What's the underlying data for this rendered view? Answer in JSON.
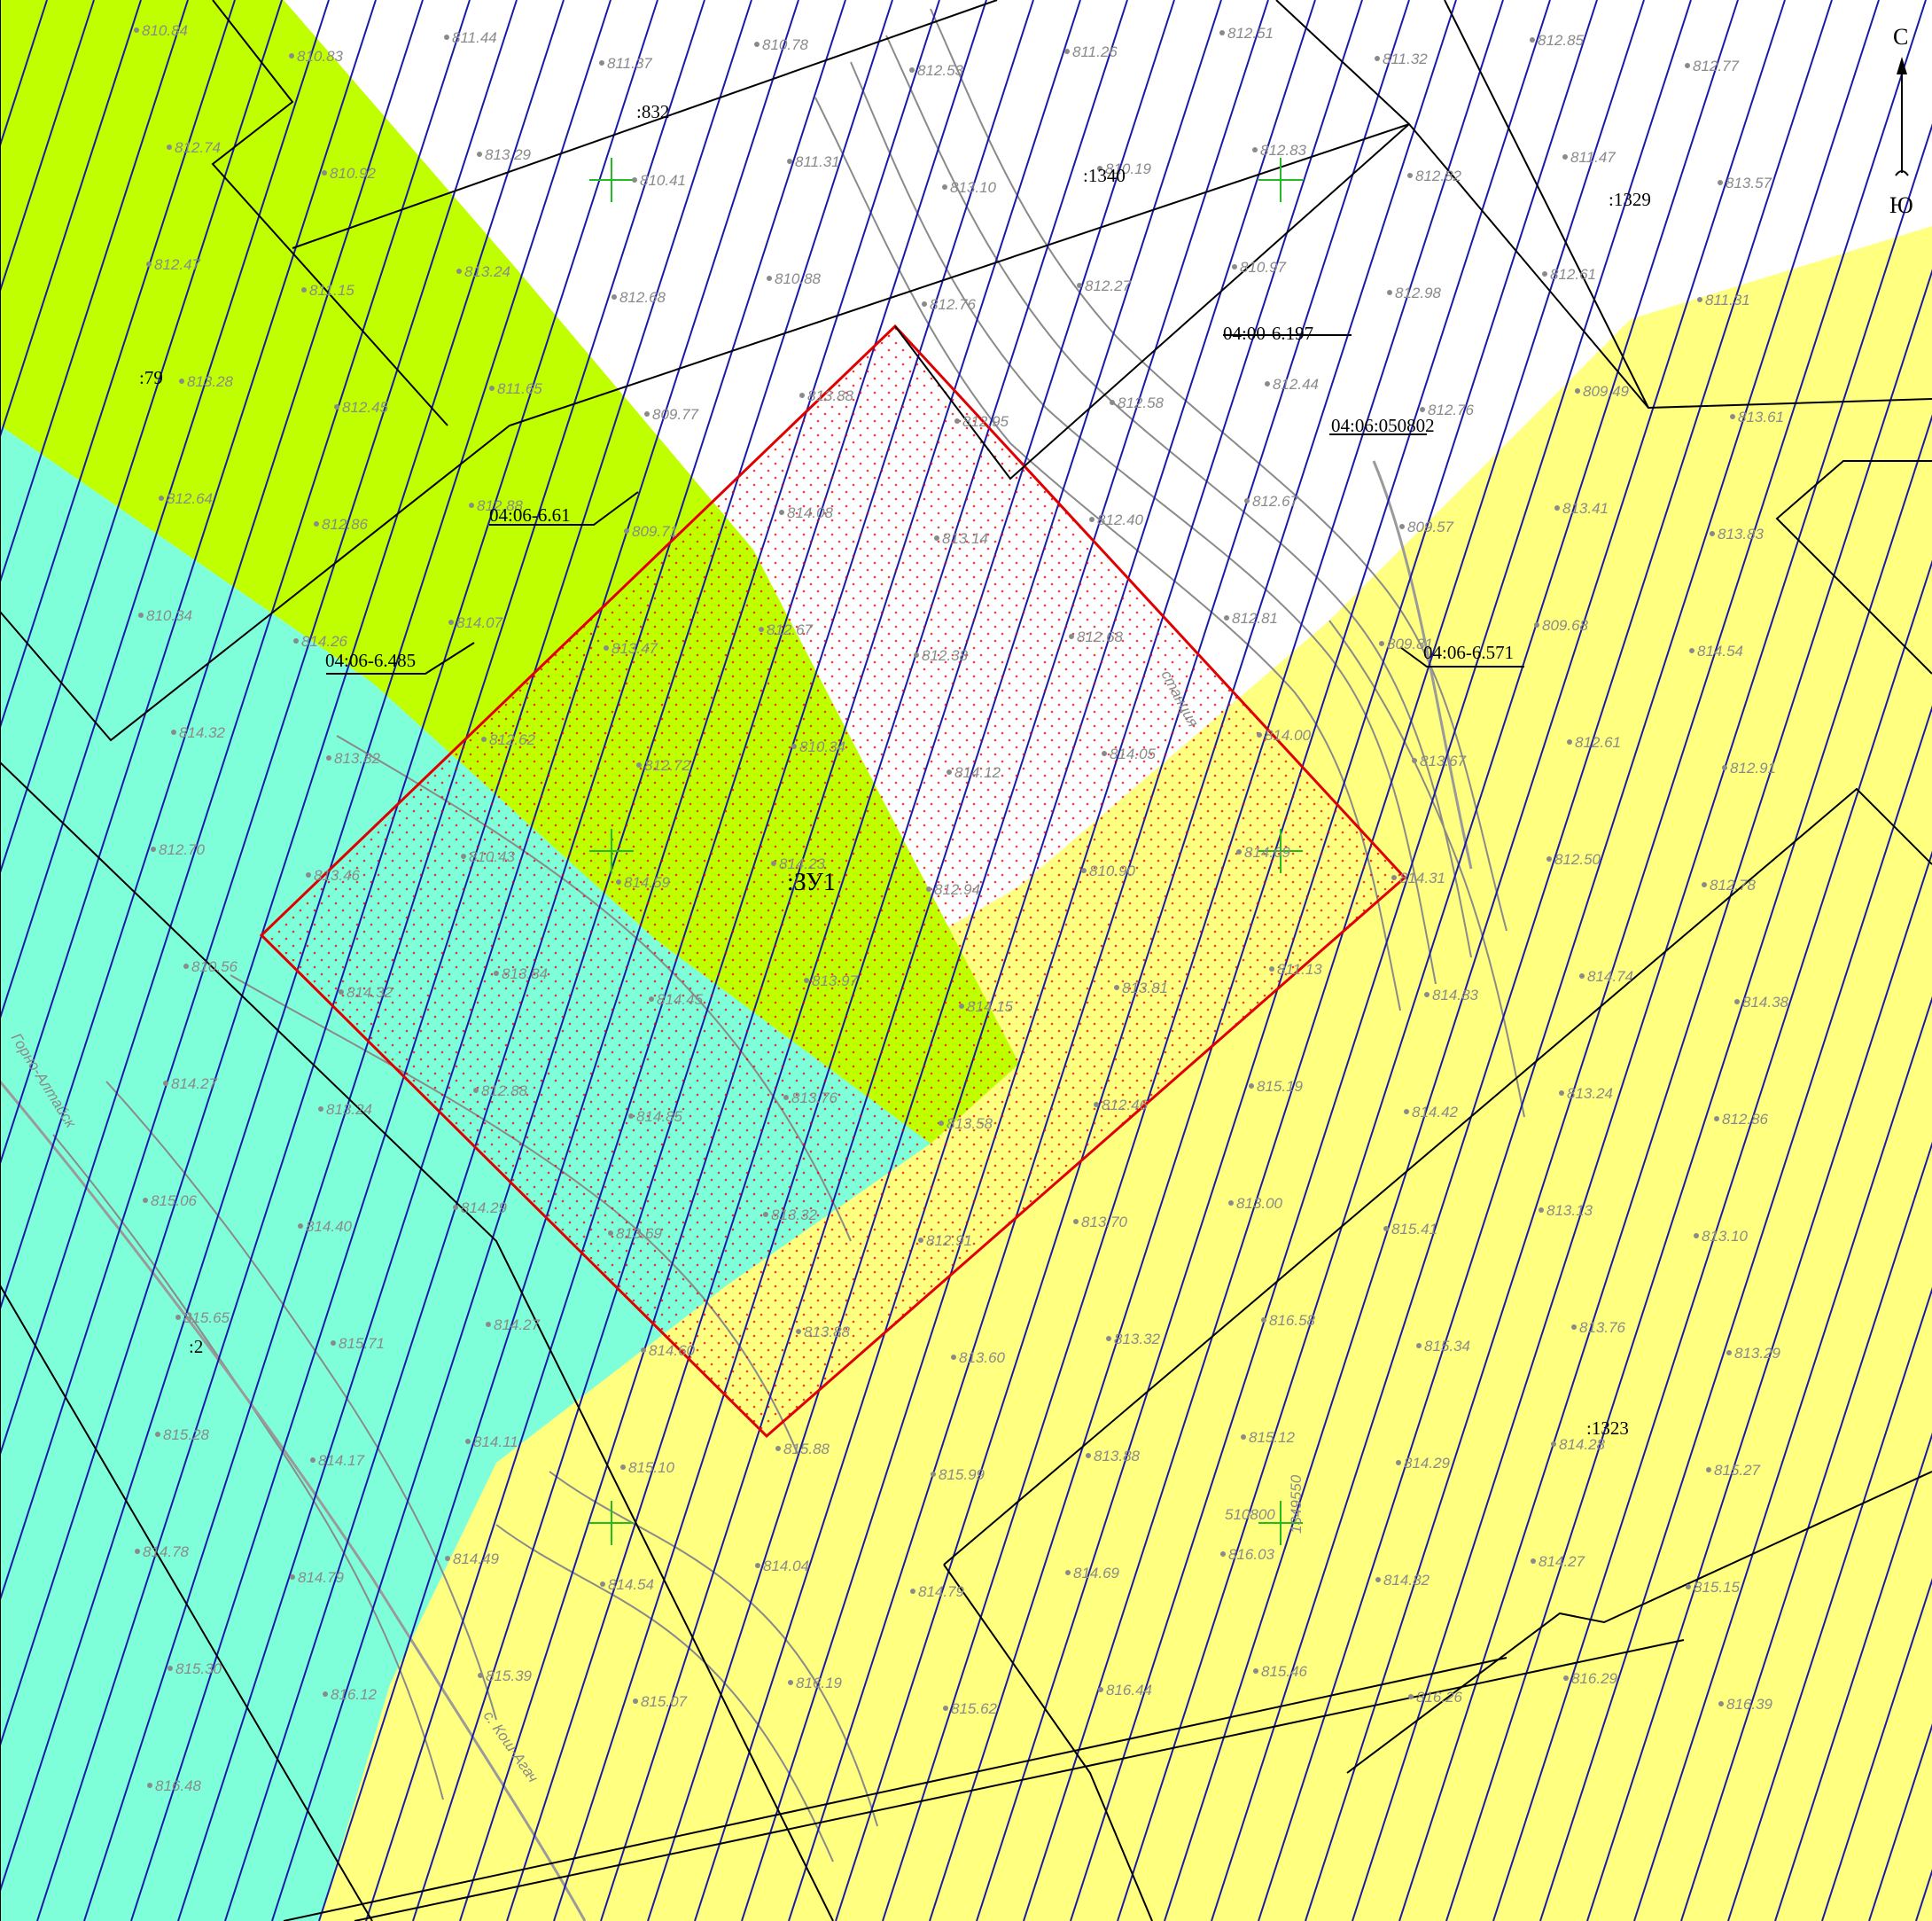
{
  "colors": {
    "yellow_zone": "#ffff80",
    "green_zone": "#bfff00",
    "cyan_zone": "#7fffd9",
    "hatch": "#1a1aa8",
    "parcel_outline": "#000000",
    "plot_outline": "#e00000",
    "grid_cross": "#22bb22",
    "topo": "#8a8a8a"
  },
  "compass": {
    "north": "С",
    "south": "Ю",
    "icon": "north-arrow-icon"
  },
  "parcel_labels": {
    "p832": ":832",
    "p1340": ":1340",
    "p1329": ":1329",
    "p79": ":79",
    "p2": ":2",
    "p1323": ":1323",
    "zu1": ":ЗУ1"
  },
  "zone_labels": {
    "z197": "04:00-6.197",
    "block": "04:06:050802",
    "z61": "04:06-6.61",
    "z485": "04:06-6.485",
    "z571": "04:06-6.571"
  },
  "place_labels": {
    "gorno": "Горно-Алтайск",
    "kosh": "с. Кош-Агач",
    "station": "станция",
    "grid_n": "510800",
    "grid_e": "1349550"
  },
  "elevations": [
    "810.84",
    "810.83",
    "811.44",
    "811.37",
    "810.78",
    "812.53",
    "811.26",
    "812.51",
    "811.32",
    "812.85",
    "812.77",
    "812.74",
    "810.92",
    "813.29",
    "810.41",
    "811.31",
    "813.10",
    "810.19",
    "812.83",
    "812.82",
    "811.47",
    "813.57",
    "812.47",
    "811.15",
    "813.24",
    "812.68",
    "810.88",
    "812.76",
    "812.27",
    "810.97",
    "812.98",
    "812.61",
    "811.31",
    "813.28",
    "812.45",
    "811.65",
    "809.77",
    "813.88",
    "812.95",
    "812.58",
    "812.44",
    "812.76",
    "809.49",
    "813.61",
    "812.64",
    "812.86",
    "812.88",
    "809.71",
    "814.08",
    "813.14",
    "812.40",
    "812.67",
    "809.57",
    "813.41",
    "813.83",
    "810.34",
    "814.26",
    "814.07",
    "813.47",
    "812.67",
    "812.38",
    "812.68",
    "812.81",
    "809.81",
    "809.68",
    "814.54",
    "814.32",
    "813.82",
    "812.62",
    "812.72",
    "810.34",
    "814.12",
    "814.05",
    "814.00",
    "813.67",
    "812.61",
    "812.91",
    "812.70",
    "813.46",
    "810.43",
    "814.59",
    "814.23",
    "812.94",
    "810.90",
    "814.69",
    "814.31",
    "812.50",
    "812.78",
    "810.56",
    "814.32",
    "813.84",
    "814.45",
    "813.97",
    "814.15",
    "813.81",
    "811.13",
    "814.83",
    "814.74",
    "814.38",
    "814.27",
    "813.24",
    "812.88",
    "814.85",
    "813.76",
    "813.58",
    "812.46",
    "815.19",
    "814.42",
    "813.24",
    "812.86",
    "815.06",
    "814.40",
    "814.29",
    "813.69",
    "813.32",
    "812.91",
    "813.70",
    "813.00",
    "815.41",
    "813.13",
    "813.10",
    "815.65",
    "815.71",
    "814.27",
    "814.60",
    "813.88",
    "813.60",
    "813.32",
    "816.58",
    "815.34",
    "813.76",
    "813.29",
    "815.28",
    "814.17",
    "814.11",
    "815.10",
    "815.88",
    "815.99",
    "813.88",
    "815.12",
    "814.29",
    "814.28",
    "815.27",
    "814.78",
    "814.79",
    "814.49",
    "814.54",
    "814.04",
    "814.79",
    "814.69",
    "816.03",
    "814.82",
    "814.27",
    "815.15",
    "815.30",
    "816.12",
    "815.39",
    "815.07",
    "816.19",
    "815.62",
    "816.44",
    "815.46",
    "816.26",
    "816.29",
    "816.39",
    "816.48"
  ]
}
